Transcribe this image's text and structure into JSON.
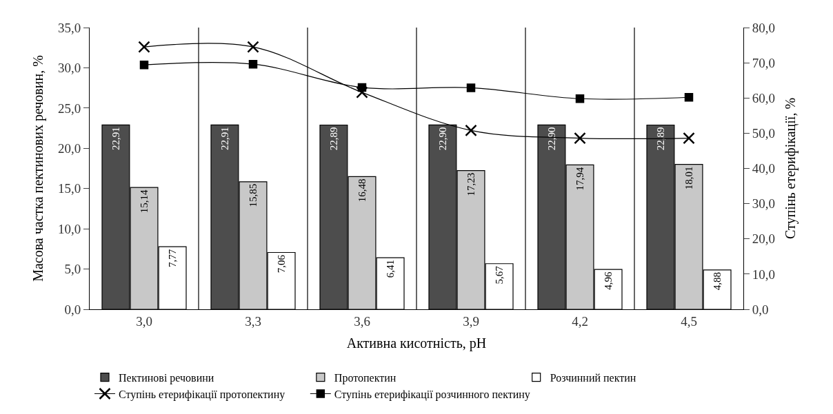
{
  "chart_data": {
    "type": "bar",
    "xlabel": "Активна кисотність, pH",
    "ylabel": "Масова частка пектинових речовин, %",
    "y2label": "Ступінь етерифікації, %",
    "categories": [
      "3,0",
      "3,3",
      "3,6",
      "3,9",
      "4,2",
      "4,5"
    ],
    "series": [
      {
        "name": "Пектинові речовини",
        "color": "#4d4d4d",
        "values": [
          22.91,
          22.91,
          22.89,
          22.9,
          22.9,
          22.89
        ],
        "value_labels": [
          "22,91",
          "22,91",
          "22,89",
          "22,90",
          "22,90",
          "22,89"
        ]
      },
      {
        "name": "Протопектин",
        "color": "#c8c8c8",
        "values": [
          15.14,
          15.85,
          16.48,
          17.23,
          17.94,
          18.01
        ],
        "value_labels": [
          "15,14",
          "15,85",
          "16,48",
          "17,23",
          "17,94",
          "18,01"
        ]
      },
      {
        "name": "Розчинний пектин",
        "color": "#ffffff",
        "values": [
          7.77,
          7.06,
          6.41,
          5.67,
          4.96,
          4.88
        ],
        "value_labels": [
          "7,77",
          "7,06",
          "6,41",
          "5,67",
          "4,96",
          "4,88"
        ]
      },
      {
        "name": "Ступінь етерифікації протопектину",
        "type": "line",
        "axis": "y2",
        "marker": "cross",
        "color": "#000000",
        "values": [
          74.5,
          74.5,
          61.6,
          50.8,
          48.6,
          48.6
        ]
      },
      {
        "name": "Ступінь етерифікації розчинного пектину",
        "type": "line",
        "axis": "y2",
        "marker": "square",
        "color": "#000000",
        "values": [
          69.4,
          69.6,
          63.0,
          62.9,
          59.8,
          60.2
        ]
      }
    ],
    "ylim": [
      0,
      35
    ],
    "yticks": [
      {
        "value": 0,
        "label": "0,0"
      },
      {
        "value": 5,
        "label": "5,0"
      },
      {
        "value": 10,
        "label": "10,0"
      },
      {
        "value": 15,
        "label": "15,0"
      },
      {
        "value": 20,
        "label": "20,0"
      },
      {
        "value": 25,
        "label": "25,0"
      },
      {
        "value": 30,
        "label": "30,0"
      },
      {
        "value": 35,
        "label": "35,0"
      }
    ],
    "y2lim": [
      0,
      80
    ],
    "y2ticks": [
      {
        "value": 0,
        "label": "0,0"
      },
      {
        "value": 10,
        "label": "10,0"
      },
      {
        "value": 20,
        "label": "20,0"
      },
      {
        "value": 30,
        "label": "30,0"
      },
      {
        "value": 40,
        "label": "40,0"
      },
      {
        "value": 50,
        "label": "50,0"
      },
      {
        "value": 60,
        "label": "60,0"
      },
      {
        "value": 70,
        "label": "70,0"
      },
      {
        "value": 80,
        "label": "80,0"
      }
    ],
    "grid": "x",
    "legend": "bottom"
  }
}
